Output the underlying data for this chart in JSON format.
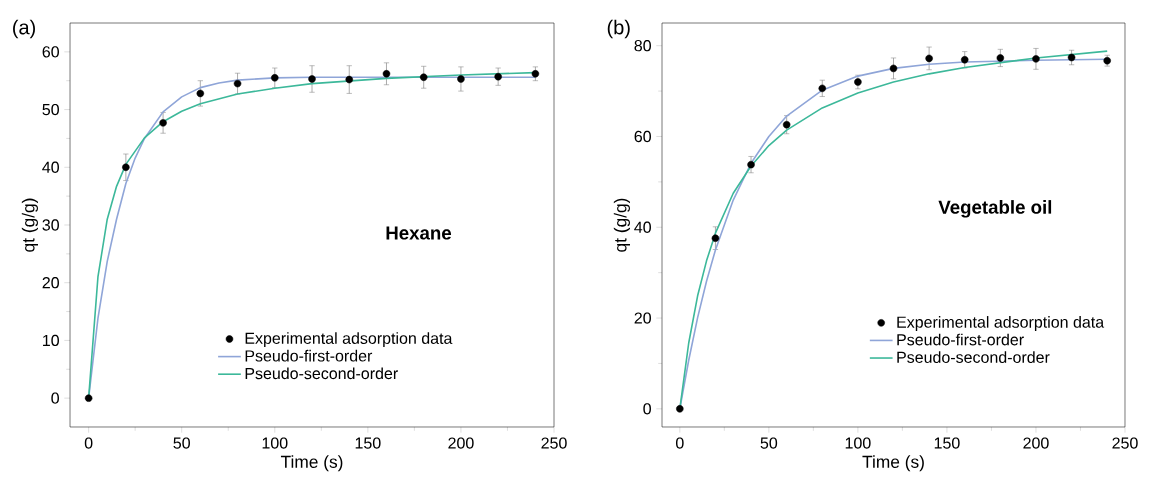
{
  "chart_data": [
    {
      "type": "scatter",
      "title": "(a)",
      "xlabel": "Time (s)",
      "ylabel": "qt (g/g)",
      "annotations": [
        "Hexane"
      ],
      "xlim": [
        -10,
        250
      ],
      "ylim": [
        -5,
        65
      ],
      "xticks": [
        0,
        50,
        100,
        150,
        200,
        250
      ],
      "yticks": [
        0,
        10,
        20,
        30,
        40,
        50,
        60
      ],
      "legend": "bottom",
      "series": [
        {
          "name": "Experimental adsorption data",
          "marker": "circle",
          "color": "#000000",
          "x": [
            0,
            20,
            40,
            60,
            80,
            100,
            120,
            140,
            160,
            180,
            200,
            220,
            240
          ],
          "values": [
            0,
            40,
            47.7,
            52.8,
            54.5,
            55.5,
            55.3,
            55.2,
            56.2,
            55.6,
            55.3,
            55.7,
            56.2
          ],
          "errors": [
            null,
            2.3,
            1.8,
            2.2,
            1.8,
            1.7,
            2.3,
            2.4,
            1.9,
            1.9,
            2.1,
            1.5,
            1.2
          ]
        },
        {
          "name": "Pseudo-first-order",
          "type": "line",
          "marker": "none",
          "line_style": "solid",
          "color": "#8fa5d8",
          "x": [
            0,
            5,
            10,
            15,
            20,
            25,
            30,
            40,
            50,
            60,
            70,
            80,
            100,
            120,
            160,
            200,
            240
          ],
          "values": [
            0,
            13.8,
            23.7,
            31,
            37.2,
            41.6,
            45,
            49.6,
            52.2,
            53.8,
            54.6,
            55.1,
            55.5,
            55.6,
            55.6,
            55.6,
            55.6
          ]
        },
        {
          "name": "Pseudo-second-order",
          "type": "line",
          "marker": "none",
          "line_style": "solid",
          "color": "#3cb89a",
          "x": [
            0,
            5,
            10,
            15,
            20,
            30,
            40,
            50,
            60,
            80,
            100,
            120,
            160,
            200,
            240
          ],
          "values": [
            0,
            21,
            31,
            36.7,
            40.5,
            45.1,
            47.9,
            49.7,
            51,
            52.7,
            53.7,
            54.5,
            55.4,
            56,
            56.4
          ]
        }
      ]
    },
    {
      "type": "scatter",
      "title": "(b)",
      "xlabel": "Time (s)",
      "ylabel": "qt (g/g)",
      "annotations": [
        "Vegetable oil"
      ],
      "xlim": [
        -10,
        250
      ],
      "ylim": [
        -4,
        85
      ],
      "xticks": [
        0,
        50,
        100,
        150,
        200,
        250
      ],
      "yticks": [
        0,
        20,
        40,
        60,
        80
      ],
      "legend": "bottom right",
      "series": [
        {
          "name": "Experimental adsorption data",
          "marker": "circle",
          "color": "#000000",
          "x": [
            0,
            20,
            40,
            60,
            80,
            100,
            120,
            140,
            160,
            180,
            200,
            220,
            240
          ],
          "values": [
            0,
            37.6,
            53.8,
            62.6,
            70.6,
            72,
            75,
            77.2,
            76.9,
            77.3,
            77.1,
            77.4,
            76.7
          ],
          "errors": [
            null,
            2.5,
            1.8,
            2,
            1.8,
            1.5,
            2.3,
            2.5,
            1.8,
            1.9,
            2.3,
            1.6,
            1.2
          ]
        },
        {
          "name": "Pseudo-first-order",
          "type": "line",
          "marker": "none",
          "line_style": "solid",
          "color": "#8fa5d8",
          "x": [
            0,
            5,
            10,
            15,
            20,
            30,
            40,
            50,
            60,
            80,
            100,
            120,
            140,
            160,
            200,
            240
          ],
          "values": [
            0,
            10.7,
            20.1,
            28.1,
            35,
            46,
            54.1,
            60,
            64.5,
            70.2,
            73.3,
            75,
            75.9,
            76.4,
            76.8,
            77
          ]
        },
        {
          "name": "Pseudo-second-order",
          "type": "line",
          "marker": "none",
          "line_style": "solid",
          "color": "#3cb89a",
          "x": [
            0,
            5,
            10,
            15,
            20,
            30,
            40,
            50,
            60,
            80,
            100,
            120,
            140,
            160,
            200,
            240
          ],
          "values": [
            0,
            14.5,
            24.9,
            32.6,
            38.7,
            47.5,
            53.5,
            58,
            61.4,
            66.3,
            69.6,
            72,
            73.8,
            75.2,
            77.3,
            78.8
          ]
        }
      ]
    }
  ]
}
